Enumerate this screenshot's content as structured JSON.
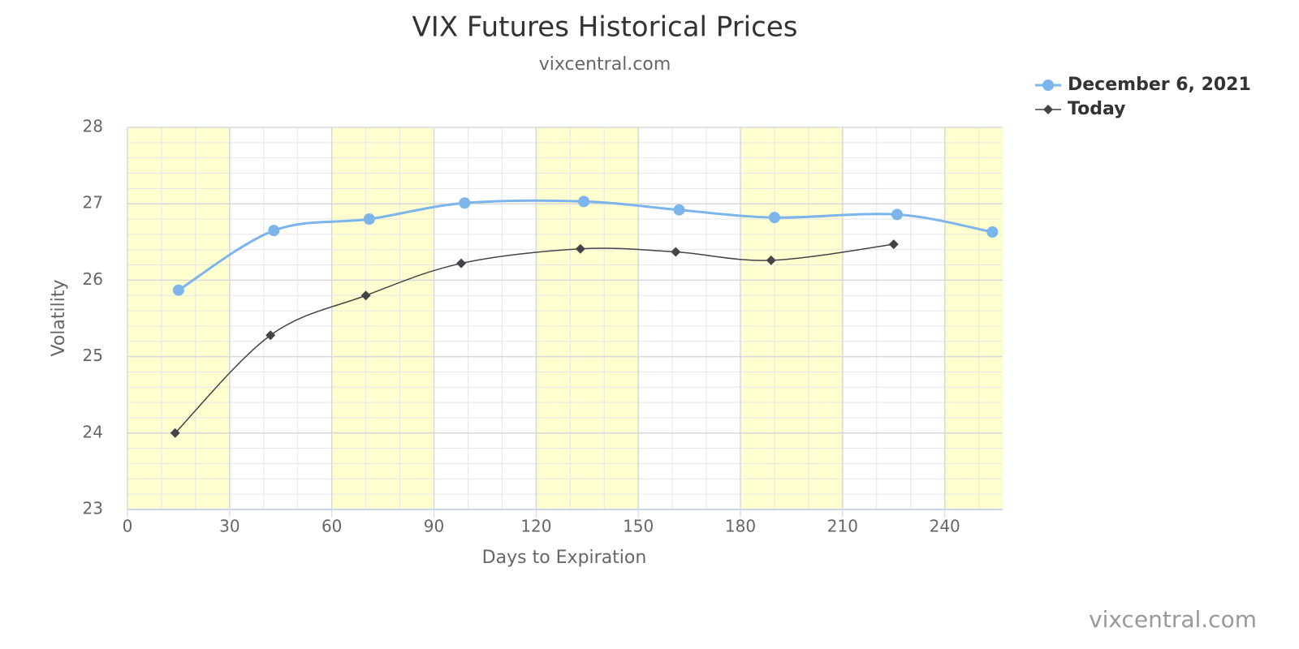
{
  "chart_data": {
    "type": "line",
    "title": "VIX Futures Historical Prices",
    "subtitle": "vixcentral.com",
    "watermark": "vixcentral.com",
    "x_label": "Days to Expiration",
    "y_label": "Volatility",
    "xlim": [
      0,
      257
    ],
    "xticks": [
      0,
      30,
      60,
      90,
      120,
      150,
      180,
      210,
      240
    ],
    "ylim": [
      23,
      28
    ],
    "yticks": [
      23,
      24,
      25,
      26,
      27,
      28
    ],
    "grid": true,
    "smooth": true,
    "legend": "top-right",
    "series": [
      {
        "name": "December 6, 2021",
        "color": "#7cb5ec",
        "marker": "circle",
        "x": [
          15,
          43,
          71,
          99,
          134,
          162,
          190,
          226,
          254
        ],
        "values": [
          25.87,
          26.65,
          26.8,
          27.01,
          27.03,
          26.92,
          26.82,
          26.86,
          26.63
        ]
      },
      {
        "name": "Today",
        "color": "#434348",
        "marker": "diamond",
        "x": [
          14,
          42,
          70,
          98,
          133,
          161,
          189,
          225
        ],
        "values": [
          24.0,
          25.28,
          25.8,
          26.22,
          26.41,
          26.37,
          26.26,
          26.47
        ]
      }
    ]
  }
}
